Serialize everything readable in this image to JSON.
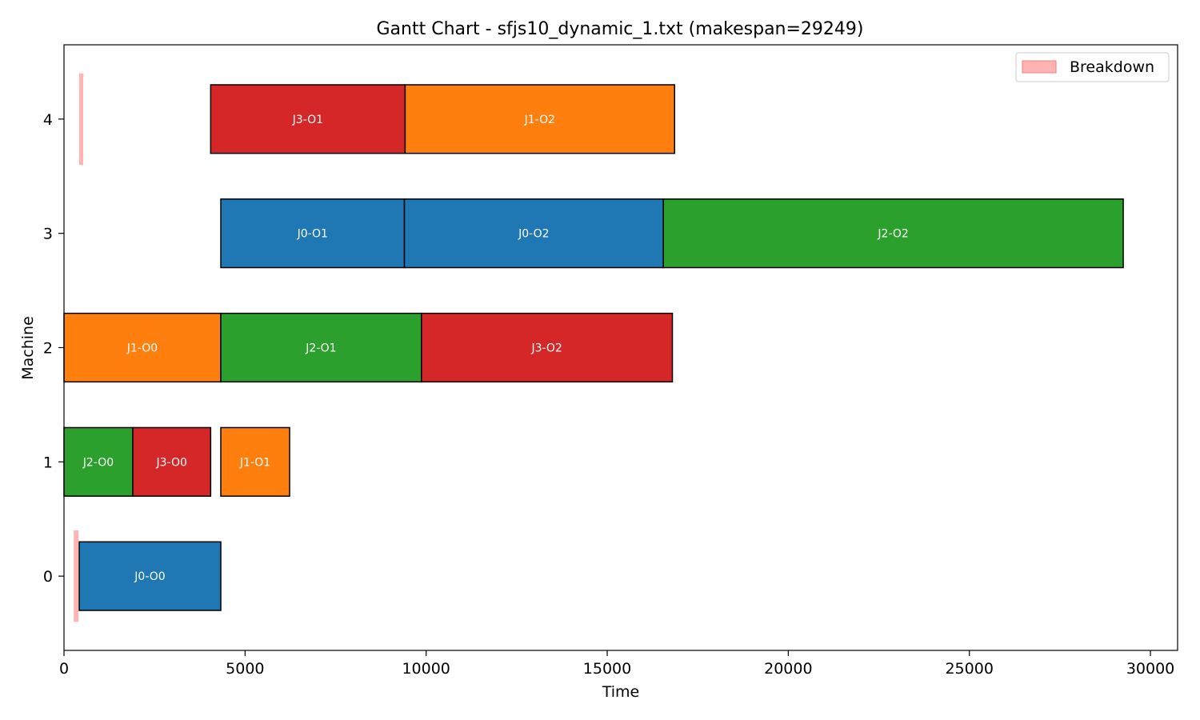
{
  "chart_data": {
    "type": "gantt",
    "title": "Gantt Chart - sfjs10_dynamic_1.txt (makespan=29249)",
    "xlabel": "Time",
    "ylabel": "Machine",
    "xlim": [
      0,
      30750
    ],
    "ylim": [
      -0.65,
      4.65
    ],
    "xticks": [
      0,
      5000,
      10000,
      15000,
      20000,
      25000,
      30000
    ],
    "yticks": [
      0,
      1,
      2,
      3,
      4
    ],
    "grid": false,
    "legend": {
      "position": "top-right",
      "entries": [
        {
          "label": "Breakdown",
          "color": "#ffb3b3"
        }
      ]
    },
    "job_colors": {
      "J0": "#1f77b4",
      "J1": "#ff7f0e",
      "J2": "#2ca02c",
      "J3": "#d62728"
    },
    "tasks": [
      {
        "label": "J0-O0",
        "job": "J0",
        "machine": 0,
        "start": 420,
        "end": 4330
      },
      {
        "label": "J2-O0",
        "job": "J2",
        "machine": 1,
        "start": 0,
        "end": 1900
      },
      {
        "label": "J3-O0",
        "job": "J3",
        "machine": 1,
        "start": 1900,
        "end": 4050
      },
      {
        "label": "J1-O1",
        "job": "J1",
        "machine": 1,
        "start": 4330,
        "end": 6230
      },
      {
        "label": "J1-O0",
        "job": "J1",
        "machine": 2,
        "start": 0,
        "end": 4330
      },
      {
        "label": "J2-O1",
        "job": "J2",
        "machine": 2,
        "start": 4330,
        "end": 9870
      },
      {
        "label": "J3-O2",
        "job": "J3",
        "machine": 2,
        "start": 9870,
        "end": 16800
      },
      {
        "label": "J0-O1",
        "job": "J0",
        "machine": 3,
        "start": 4330,
        "end": 9400
      },
      {
        "label": "J0-O2",
        "job": "J0",
        "machine": 3,
        "start": 9400,
        "end": 16550
      },
      {
        "label": "J2-O2",
        "job": "J2",
        "machine": 3,
        "start": 16550,
        "end": 29249
      },
      {
        "label": "J3-O1",
        "job": "J3",
        "machine": 4,
        "start": 4050,
        "end": 9420
      },
      {
        "label": "J1-O2",
        "job": "J1",
        "machine": 4,
        "start": 9420,
        "end": 16860
      }
    ],
    "breakdowns": [
      {
        "machine": 0,
        "start": 270,
        "end": 400
      },
      {
        "machine": 4,
        "start": 420,
        "end": 530
      }
    ]
  }
}
